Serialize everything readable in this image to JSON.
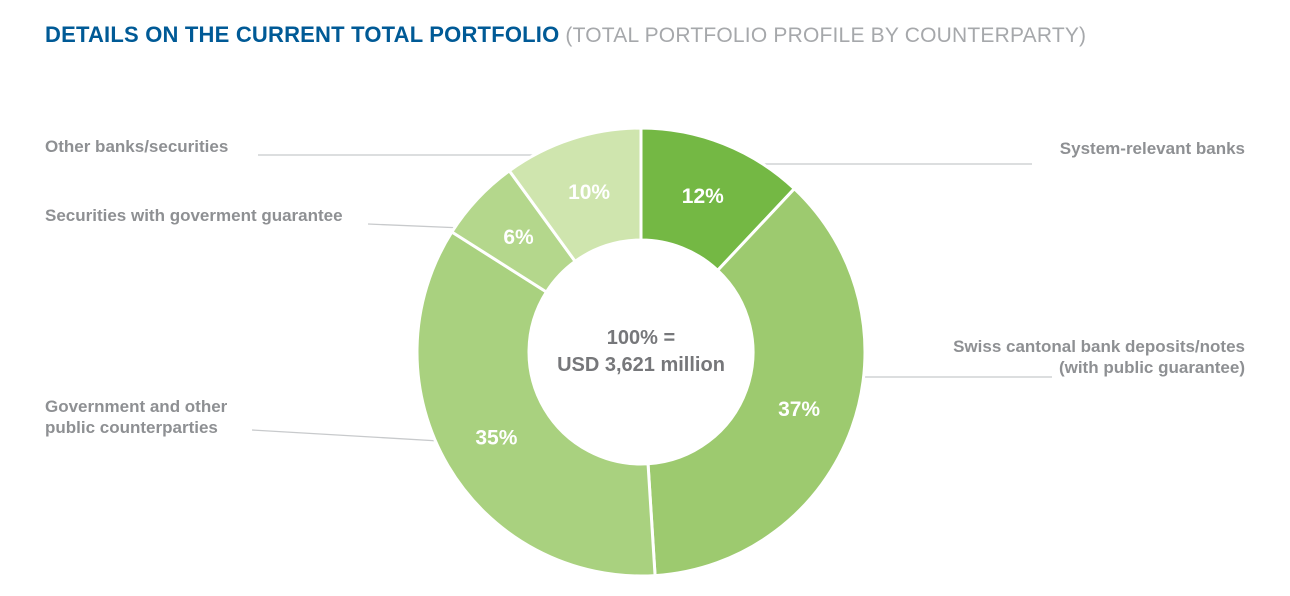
{
  "header": {
    "title": "DETAILS ON THE CURRENT TOTAL PORTFOLIO",
    "subtitle": "(TOTAL PORTFOLIO PROFILE BY COUNTERPARTY)"
  },
  "chart_data": {
    "type": "pie",
    "variant": "donut",
    "title": "DETAILS ON THE CURRENT TOTAL PORTFOLIO (TOTAL PORTFOLIO PROFILE BY COUNTERPARTY)",
    "center_label": {
      "line1": "100% =",
      "line2": "USD 3,621 million"
    },
    "start_angle_deg": 0,
    "direction": "clockwise",
    "legend_position": "around-chart",
    "segments": [
      {
        "label": "System-relevant banks",
        "value": 12,
        "display": "12%",
        "color": "#74b844"
      },
      {
        "label": "Swiss cantonal bank deposits/notes\n(with public guarantee)",
        "value": 37,
        "display": "37%",
        "color": "#9dca6f"
      },
      {
        "label": "Government and other\npublic counterparties",
        "value": 35,
        "display": "35%",
        "color": "#a9d17f"
      },
      {
        "label": "Securities with goverment guarantee",
        "value": 6,
        "display": "6%",
        "color": "#b4d78c"
      },
      {
        "label": "Other banks/securities",
        "value": 10,
        "display": "10%",
        "color": "#cfe5ae"
      }
    ]
  },
  "colors": {
    "title": "#005a96",
    "subtitle": "#a6a8ab",
    "category_label": "#8e9093",
    "center_text": "#76777a",
    "leader_line": "#c8cacc",
    "percent_text": "#ffffff"
  }
}
